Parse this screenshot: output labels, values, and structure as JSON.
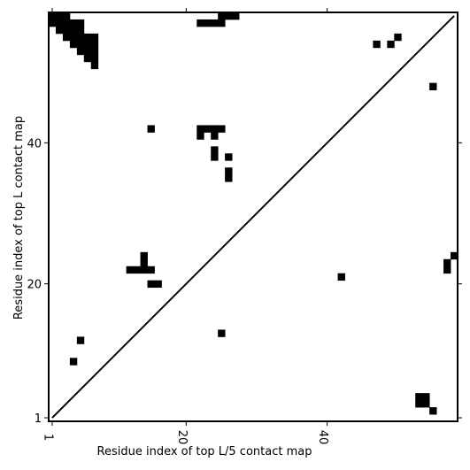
{
  "chart_data": {
    "type": "heatmap",
    "title": "",
    "xlabel": "Residue index of top L/5 contact map",
    "ylabel": "Residue index of top L contact map",
    "xlim": [
      0.5,
      58.5
    ],
    "ylim": [
      0.5,
      58.5
    ],
    "xticks": [
      1,
      20,
      40
    ],
    "yticks": [
      1,
      20,
      40
    ],
    "diagonal": {
      "from": [
        1,
        1
      ],
      "to": [
        58,
        58
      ]
    },
    "contacts": [
      [
        1,
        58
      ],
      [
        2,
        58
      ],
      [
        3,
        58
      ],
      [
        1,
        57
      ],
      [
        2,
        57
      ],
      [
        3,
        57
      ],
      [
        4,
        57
      ],
      [
        5,
        57
      ],
      [
        2,
        56
      ],
      [
        3,
        56
      ],
      [
        4,
        56
      ],
      [
        5,
        56
      ],
      [
        3,
        55
      ],
      [
        4,
        55
      ],
      [
        5,
        55
      ],
      [
        6,
        55
      ],
      [
        7,
        55
      ],
      [
        4,
        54
      ],
      [
        5,
        54
      ],
      [
        6,
        54
      ],
      [
        7,
        54
      ],
      [
        5,
        53
      ],
      [
        6,
        53
      ],
      [
        7,
        53
      ],
      [
        6,
        52
      ],
      [
        7,
        52
      ],
      [
        7,
        51
      ],
      [
        22,
        57
      ],
      [
        23,
        57
      ],
      [
        24,
        57
      ],
      [
        25,
        57
      ],
      [
        25,
        58
      ],
      [
        26,
        58
      ],
      [
        27,
        58
      ],
      [
        47,
        54
      ],
      [
        49,
        54
      ],
      [
        50,
        55
      ],
      [
        55,
        48
      ],
      [
        15,
        42
      ],
      [
        22,
        42
      ],
      [
        23,
        42
      ],
      [
        24,
        42
      ],
      [
        25,
        42
      ],
      [
        22,
        41
      ],
      [
        24,
        41
      ],
      [
        24,
        39
      ],
      [
        24,
        38
      ],
      [
        26,
        38
      ],
      [
        26,
        36
      ],
      [
        26,
        35
      ],
      [
        14,
        24
      ],
      [
        14,
        23
      ],
      [
        12,
        22
      ],
      [
        13,
        22
      ],
      [
        14,
        22
      ],
      [
        15,
        22
      ],
      [
        15,
        20
      ],
      [
        16,
        20
      ],
      [
        42,
        21
      ],
      [
        57,
        23
      ],
      [
        57,
        22
      ],
      [
        58,
        24
      ],
      [
        5,
        12
      ],
      [
        25,
        13
      ],
      [
        4,
        9
      ],
      [
        53,
        4
      ],
      [
        54,
        4
      ],
      [
        53,
        3
      ],
      [
        54,
        3
      ],
      [
        55,
        2
      ]
    ]
  }
}
